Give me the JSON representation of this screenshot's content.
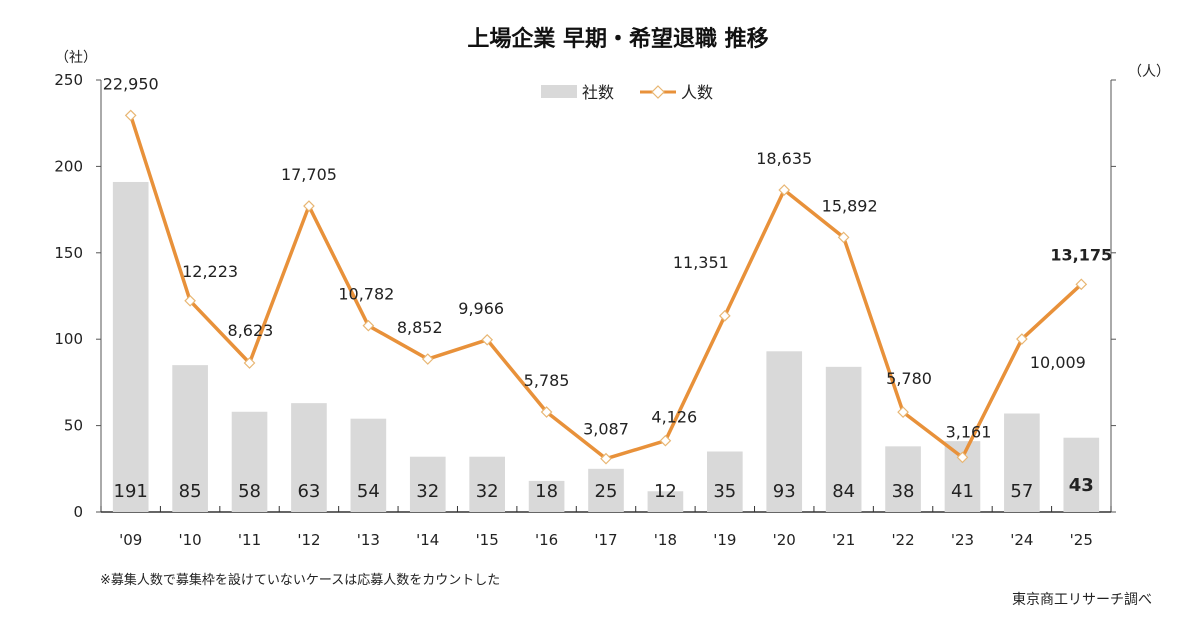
{
  "chart_data": {
    "type": "bar+line",
    "title": "上場企業 早期・希望退職 推移",
    "categories": [
      "'09",
      "'10",
      "'11",
      "'12",
      "'13",
      "'14",
      "'15",
      "'16",
      "'17",
      "'18",
      "'19",
      "'20",
      "'21",
      "'22",
      "'23",
      "'24",
      "'25"
    ],
    "series": [
      {
        "name": "社数",
        "type": "bar",
        "axis": "left",
        "color": "#d9d9d9",
        "values": [
          191,
          85,
          58,
          63,
          54,
          32,
          32,
          18,
          25,
          12,
          35,
          93,
          84,
          38,
          41,
          57,
          43
        ],
        "labels": [
          "191",
          "85",
          "58",
          "63",
          "54",
          "32",
          "32",
          "18",
          "25",
          "12",
          "35",
          "93",
          "84",
          "38",
          "41",
          "57",
          "43"
        ]
      },
      {
        "name": "人数",
        "type": "line",
        "axis": "right",
        "color": "#e8913a",
        "marker": "diamond",
        "values": [
          22950,
          12223,
          8623,
          17705,
          10782,
          8852,
          9966,
          5785,
          3087,
          4126,
          11351,
          18635,
          15892,
          5780,
          3161,
          10009,
          13175
        ],
        "labels": [
          "22,950",
          "12,223",
          "8,623",
          "17,705",
          "10,782",
          "8,852",
          "9,966",
          "5,785",
          "3,087",
          "4,126",
          "11,351",
          "18,635",
          "15,892",
          "5,780",
          "3,161",
          "10,009",
          "13,175"
        ]
      }
    ],
    "y_left": {
      "unit": "（社）",
      "ylim": [
        0,
        250
      ],
      "ticks": [
        "0",
        "50",
        "100",
        "150",
        "200",
        "250"
      ]
    },
    "y_right": {
      "unit": "（人）",
      "ylim": [
        0,
        25000
      ],
      "tick_count": 6,
      "tick_labels_shown": false
    },
    "highlight": {
      "bar_last_color": "#d0202a",
      "line_last_color": "#1f5f8b"
    },
    "legend": {
      "position": "top-center",
      "items": [
        "社数",
        "人数"
      ]
    },
    "grid": false,
    "note": "※募集人数で募集枠を設けていないケースは応募人数をカウントした",
    "source": "東京商工リサーチ調べ"
  }
}
